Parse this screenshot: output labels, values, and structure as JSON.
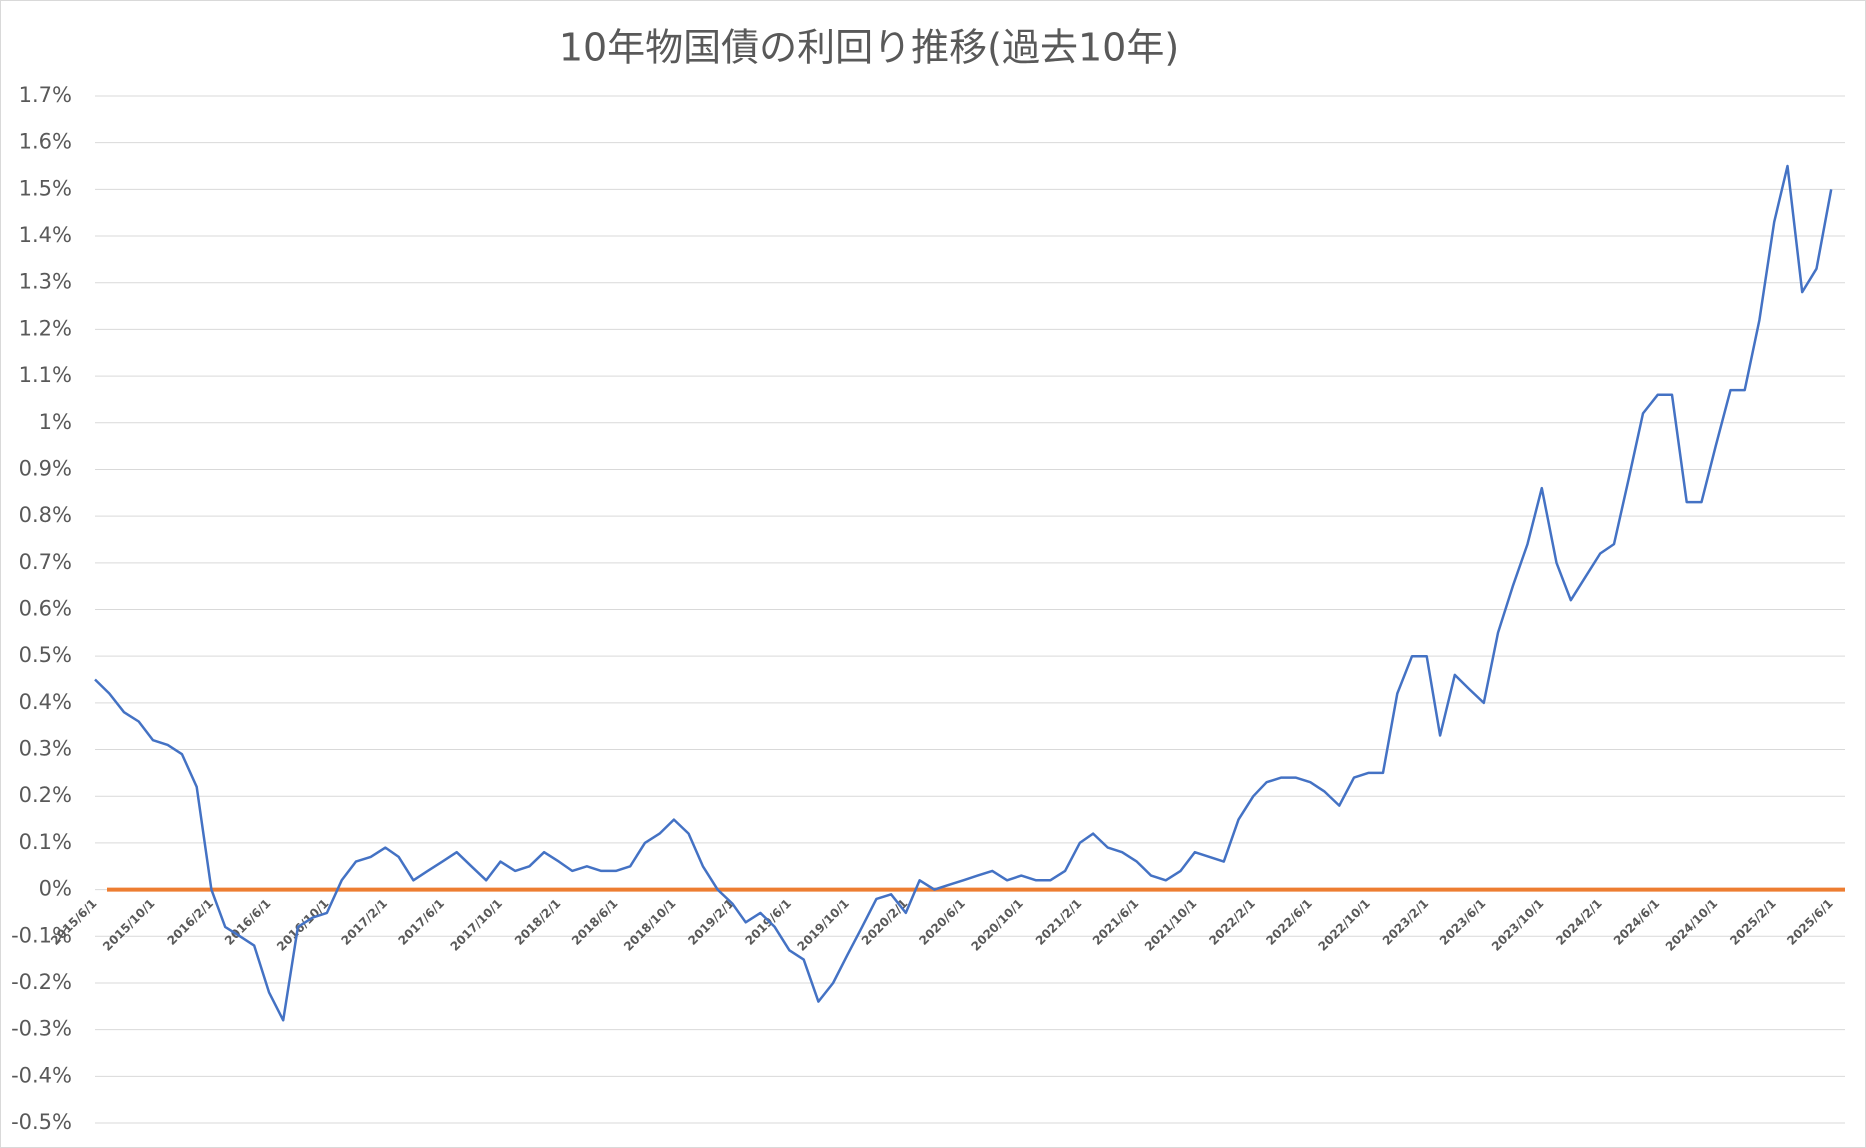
{
  "chart_data": {
    "type": "line",
    "title": "10年物国債の利回り推移(過去10年)",
    "x": [
      "2015/6/1",
      "2015/7/1",
      "2015/8/1",
      "2015/9/1",
      "2015/10/1",
      "2015/11/1",
      "2015/12/1",
      "2016/1/1",
      "2016/2/1",
      "2016/3/1",
      "2016/4/1",
      "2016/5/1",
      "2016/6/1",
      "2016/7/1",
      "2016/8/1",
      "2016/9/1",
      "2016/10/1",
      "2016/11/1",
      "2016/12/1",
      "2017/1/1",
      "2017/2/1",
      "2017/3/1",
      "2017/4/1",
      "2017/5/1",
      "2017/6/1",
      "2017/7/1",
      "2017/8/1",
      "2017/9/1",
      "2017/10/1",
      "2017/11/1",
      "2017/12/1",
      "2018/1/1",
      "2018/2/1",
      "2018/3/1",
      "2018/4/1",
      "2018/5/1",
      "2018/6/1",
      "2018/7/1",
      "2018/8/1",
      "2018/9/1",
      "2018/10/1",
      "2018/11/1",
      "2018/12/1",
      "2019/1/1",
      "2019/2/1",
      "2019/3/1",
      "2019/4/1",
      "2019/5/1",
      "2019/6/1",
      "2019/7/1",
      "2019/8/1",
      "2019/9/1",
      "2019/10/1",
      "2019/11/1",
      "2019/12/1",
      "2020/1/1",
      "2020/2/1",
      "2020/3/1",
      "2020/4/1",
      "2020/5/1",
      "2020/6/1",
      "2020/7/1",
      "2020/8/1",
      "2020/9/1",
      "2020/10/1",
      "2020/11/1",
      "2020/12/1",
      "2021/1/1",
      "2021/2/1",
      "2021/3/1",
      "2021/4/1",
      "2021/5/1",
      "2021/6/1",
      "2021/7/1",
      "2021/8/1",
      "2021/9/1",
      "2021/10/1",
      "2021/11/1",
      "2021/12/1",
      "2022/1/1",
      "2022/2/1",
      "2022/3/1",
      "2022/4/1",
      "2022/5/1",
      "2022/6/1",
      "2022/7/1",
      "2022/8/1",
      "2022/9/1",
      "2022/10/1",
      "2022/11/1",
      "2022/12/1",
      "2023/1/1",
      "2023/2/1",
      "2023/3/1",
      "2023/4/1",
      "2023/5/1",
      "2023/6/1",
      "2023/7/1",
      "2023/8/1",
      "2023/9/1",
      "2023/10/1",
      "2023/11/1",
      "2023/12/1",
      "2024/1/1",
      "2024/2/1",
      "2024/3/1",
      "2024/4/1",
      "2024/5/1",
      "2024/6/1",
      "2024/7/1",
      "2024/8/1",
      "2024/9/1",
      "2024/10/1",
      "2024/11/1",
      "2024/12/1",
      "2025/1/1",
      "2025/2/1",
      "2025/3/1",
      "2025/4/1",
      "2025/5/1",
      "2025/6/1"
    ],
    "series": [
      {
        "color": "#4472c4",
        "values": [
          0.45,
          0.42,
          0.38,
          0.36,
          0.32,
          0.31,
          0.29,
          0.22,
          0.0,
          -0.08,
          -0.1,
          -0.12,
          -0.22,
          -0.28,
          -0.08,
          -0.06,
          -0.05,
          0.02,
          0.06,
          0.07,
          0.09,
          0.07,
          0.02,
          0.04,
          0.06,
          0.08,
          0.05,
          0.02,
          0.06,
          0.04,
          0.05,
          0.08,
          0.06,
          0.04,
          0.05,
          0.04,
          0.04,
          0.05,
          0.1,
          0.12,
          0.15,
          0.12,
          0.05,
          0.0,
          -0.03,
          -0.07,
          -0.05,
          -0.08,
          -0.13,
          -0.15,
          -0.24,
          -0.2,
          -0.14,
          -0.08,
          -0.02,
          -0.01,
          -0.05,
          0.02,
          0.0,
          0.01,
          0.02,
          0.03,
          0.04,
          0.02,
          0.03,
          0.02,
          0.02,
          0.04,
          0.1,
          0.12,
          0.09,
          0.08,
          0.06,
          0.03,
          0.02,
          0.04,
          0.08,
          0.07,
          0.06,
          0.15,
          0.2,
          0.23,
          0.24,
          0.24,
          0.23,
          0.21,
          0.18,
          0.24,
          0.25,
          0.25,
          0.42,
          0.5,
          0.5,
          0.33,
          0.46,
          0.43,
          0.4,
          0.55,
          0.65,
          0.74,
          0.86,
          0.7,
          0.62,
          0.67,
          0.72,
          0.74,
          0.88,
          1.02,
          1.06,
          1.06,
          0.83,
          0.83,
          0.95,
          1.07,
          1.07,
          1.22,
          1.43,
          1.55,
          1.28,
          1.33,
          1.5
        ]
      }
    ],
    "reference_line": {
      "value": 0,
      "color": "#ed7d31"
    },
    "xlim": [
      "2015/6/1",
      "2025/6/30"
    ],
    "xticks": [
      "2015/6/1",
      "2015/10/1",
      "2016/2/1",
      "2016/6/1",
      "2016/10/1",
      "2017/2/1",
      "2017/6/1",
      "2017/10/1",
      "2018/2/1",
      "2018/6/1",
      "2018/10/1",
      "2019/2/1",
      "2019/6/1",
      "2019/10/1",
      "2020/2/1",
      "2020/6/1",
      "2020/10/1",
      "2021/2/1",
      "2021/6/1",
      "2021/10/1",
      "2022/2/1",
      "2022/6/1",
      "2022/10/1",
      "2023/2/1",
      "2023/6/1",
      "2023/10/1",
      "2024/2/1",
      "2024/6/1",
      "2024/10/1",
      "2025/2/1",
      "2025/6/1"
    ],
    "ylim": [
      -0.5,
      1.7
    ],
    "yticks": [
      {
        "value": 1.7,
        "label": "1.7%"
      },
      {
        "value": 1.6,
        "label": "1.6%"
      },
      {
        "value": 1.5,
        "label": "1.5%"
      },
      {
        "value": 1.4,
        "label": "1.4%"
      },
      {
        "value": 1.3,
        "label": "1.3%"
      },
      {
        "value": 1.2,
        "label": "1.2%"
      },
      {
        "value": 1.1,
        "label": "1.1%"
      },
      {
        "value": 1,
        "label": "1%"
      },
      {
        "value": 0.9,
        "label": "0.9%"
      },
      {
        "value": 0.8,
        "label": "0.8%"
      },
      {
        "value": 0.7,
        "label": "0.7%"
      },
      {
        "value": 0.6,
        "label": "0.6%"
      },
      {
        "value": 0.5,
        "label": "0.5%"
      },
      {
        "value": 0.4,
        "label": "0.4%"
      },
      {
        "value": 0.3,
        "label": "0.3%"
      },
      {
        "value": 0.2,
        "label": "0.2%"
      },
      {
        "value": 0.1,
        "label": "0.1%"
      },
      {
        "value": 0,
        "label": "0%"
      },
      {
        "value": -0.1,
        "label": "-0.1%"
      },
      {
        "value": -0.2,
        "label": "-0.2%"
      },
      {
        "value": -0.3,
        "label": "-0.3%"
      },
      {
        "value": -0.4,
        "label": "-0.4%"
      },
      {
        "value": -0.5,
        "label": "-0.5%"
      }
    ],
    "grid": true
  }
}
